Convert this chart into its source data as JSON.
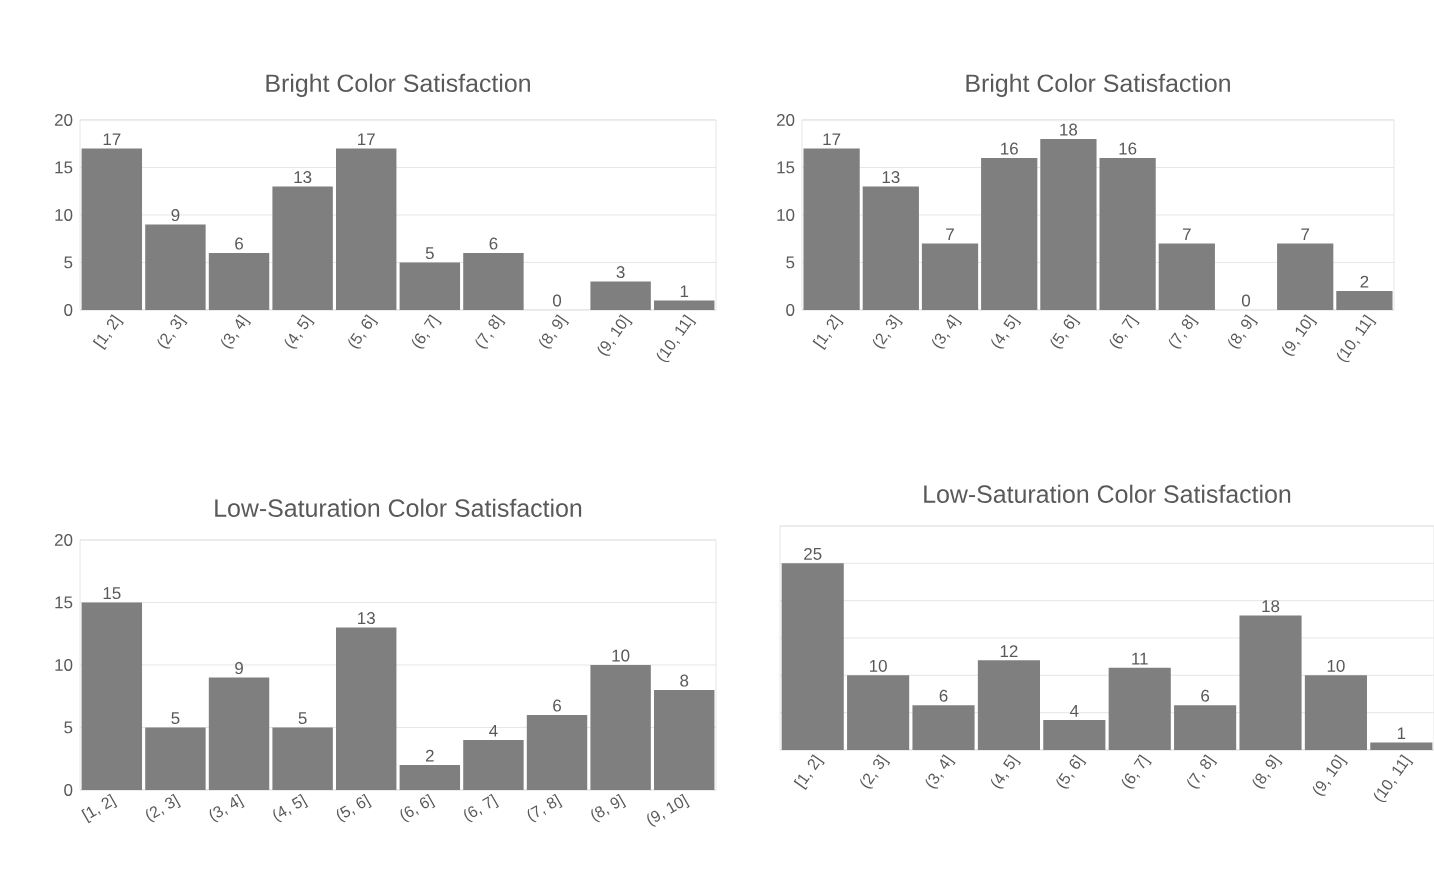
{
  "chart_data": [
    {
      "type": "bar",
      "title": "Bright Color Satisfaction",
      "categories": [
        "[1, 2]",
        "(2, 3]",
        "(3, 4]",
        "(4, 5]",
        "(5, 6]",
        "(6, 7]",
        "(7, 8]",
        "(8, 9]",
        "(9, 10]",
        "(10, 11]"
      ],
      "values": [
        17,
        9,
        6,
        13,
        17,
        5,
        6,
        0,
        3,
        1
      ],
      "color": "#7f7f7f",
      "ylim": [
        0,
        20
      ],
      "yticks": [
        0,
        5,
        10,
        15,
        20
      ],
      "grid": "y",
      "data_labels": true
    },
    {
      "type": "bar",
      "title": "Bright Color Satisfaction",
      "categories": [
        "[1, 2]",
        "(2, 3]",
        "(3, 4]",
        "(4, 5]",
        "(5, 6]",
        "(6, 7]",
        "(7, 8]",
        "(8, 9]",
        "(9, 10]",
        "(10, 11]"
      ],
      "values": [
        17,
        13,
        7,
        16,
        18,
        16,
        7,
        0,
        7,
        2
      ],
      "color": "#7f7f7f",
      "ylim": [
        0,
        20
      ],
      "yticks": [
        0,
        5,
        10,
        15,
        20
      ],
      "grid": "y",
      "data_labels": true
    },
    {
      "type": "bar",
      "title": "Low-Saturation Color Satisfaction",
      "categories": [
        "[1, 2]",
        "(2, 3]",
        "(3, 4]",
        "(4, 5]",
        "(5, 6]",
        "(6, 6]",
        "(6, 7]",
        "(7, 8]",
        "(8, 9]",
        "(9, 10]"
      ],
      "values": [
        15,
        5,
        9,
        5,
        13,
        2,
        4,
        6,
        10,
        8
      ],
      "color": "#7f7f7f",
      "ylim": [
        0,
        20
      ],
      "yticks": [
        0,
        5,
        10,
        15,
        20
      ],
      "grid": "y",
      "data_labels": true
    },
    {
      "type": "bar",
      "title": "Low-Saturation Color Satisfaction",
      "categories": [
        "[1, 2]",
        "(2, 3]",
        "(3, 4]",
        "(4, 5]",
        "(5, 6]",
        "(6, 7]",
        "(7, 8]",
        "(8, 9]",
        "(9, 10]",
        "(10, 11]"
      ],
      "values": [
        25,
        10,
        6,
        12,
        4,
        11,
        6,
        18,
        10,
        1
      ],
      "color": "#7f7f7f",
      "ylim": [
        0,
        30
      ],
      "yticks": [
        {
          "value": 0,
          "label": null
        },
        {
          "value": 5,
          "label": null
        },
        {
          "value": 10,
          "label": null
        },
        {
          "value": 15,
          "label": null
        },
        {
          "value": 20,
          "label": null
        },
        {
          "value": 25,
          "label": null
        },
        {
          "value": 30,
          "label": null
        }
      ],
      "grid": "y",
      "data_labels": true
    }
  ]
}
